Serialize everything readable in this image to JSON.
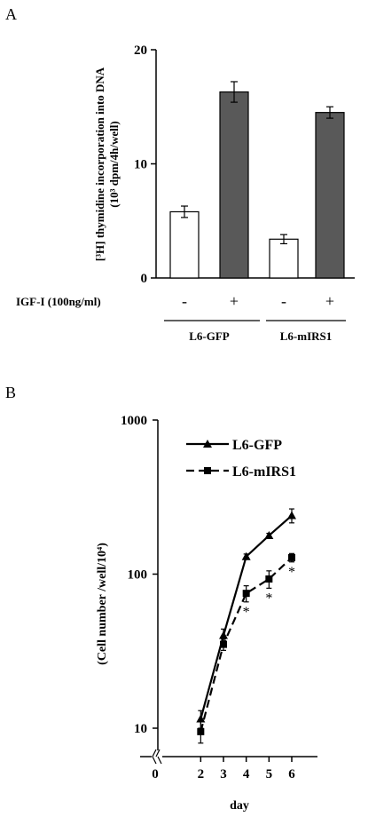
{
  "panels": {
    "a": {
      "label": "A"
    },
    "b": {
      "label": "B"
    }
  },
  "chart_data": [
    {
      "type": "bar",
      "ylabel_line1": "[³H] thymidine incorporation into DNA",
      "ylabel_line2": "(10³ dpm/4h/well)",
      "ylim": [
        0,
        20
      ],
      "yticks": [
        0,
        10,
        20
      ],
      "treatment_label": "IGF-I (100ng/ml)",
      "categories": [
        "-",
        "+",
        "-",
        "+"
      ],
      "groups": [
        "L6-GFP",
        "L6-mIRS1"
      ],
      "values": [
        5.8,
        16.3,
        3.4,
        14.5
      ],
      "errors": [
        0.5,
        0.9,
        0.4,
        0.5
      ],
      "bar_colors": [
        "#ffffff",
        "#595959",
        "#ffffff",
        "#595959"
      ],
      "grid": false
    },
    {
      "type": "line",
      "xlabel": "day",
      "ylabel": "(Cell number /well/10⁴)",
      "xlim": [
        0,
        6
      ],
      "xticks": [
        0,
        2,
        3,
        4,
        5,
        6
      ],
      "yscale": "log",
      "ylim": [
        8,
        1000
      ],
      "yticks": [
        10,
        100,
        1000
      ],
      "series": [
        {
          "name": "L6-GFP",
          "marker": "triangle",
          "dash": "solid",
          "x": [
            2,
            3,
            4,
            5,
            6
          ],
          "y": [
            11.5,
            40,
            130,
            178,
            240
          ],
          "err": [
            1.5,
            4,
            5,
            6,
            25
          ]
        },
        {
          "name": "L6-mIRS1",
          "marker": "square",
          "dash": "dashed",
          "x": [
            2,
            3,
            4,
            5,
            6
          ],
          "y": [
            9.5,
            35,
            75,
            93,
            128
          ],
          "err": [
            1.5,
            3,
            9,
            12,
            8
          ]
        }
      ],
      "annotations": [
        {
          "x": 4,
          "text": "*"
        },
        {
          "x": 5,
          "text": "*"
        },
        {
          "x": 6,
          "text": "*"
        }
      ],
      "legend_position": "top-left",
      "grid": false
    }
  ]
}
